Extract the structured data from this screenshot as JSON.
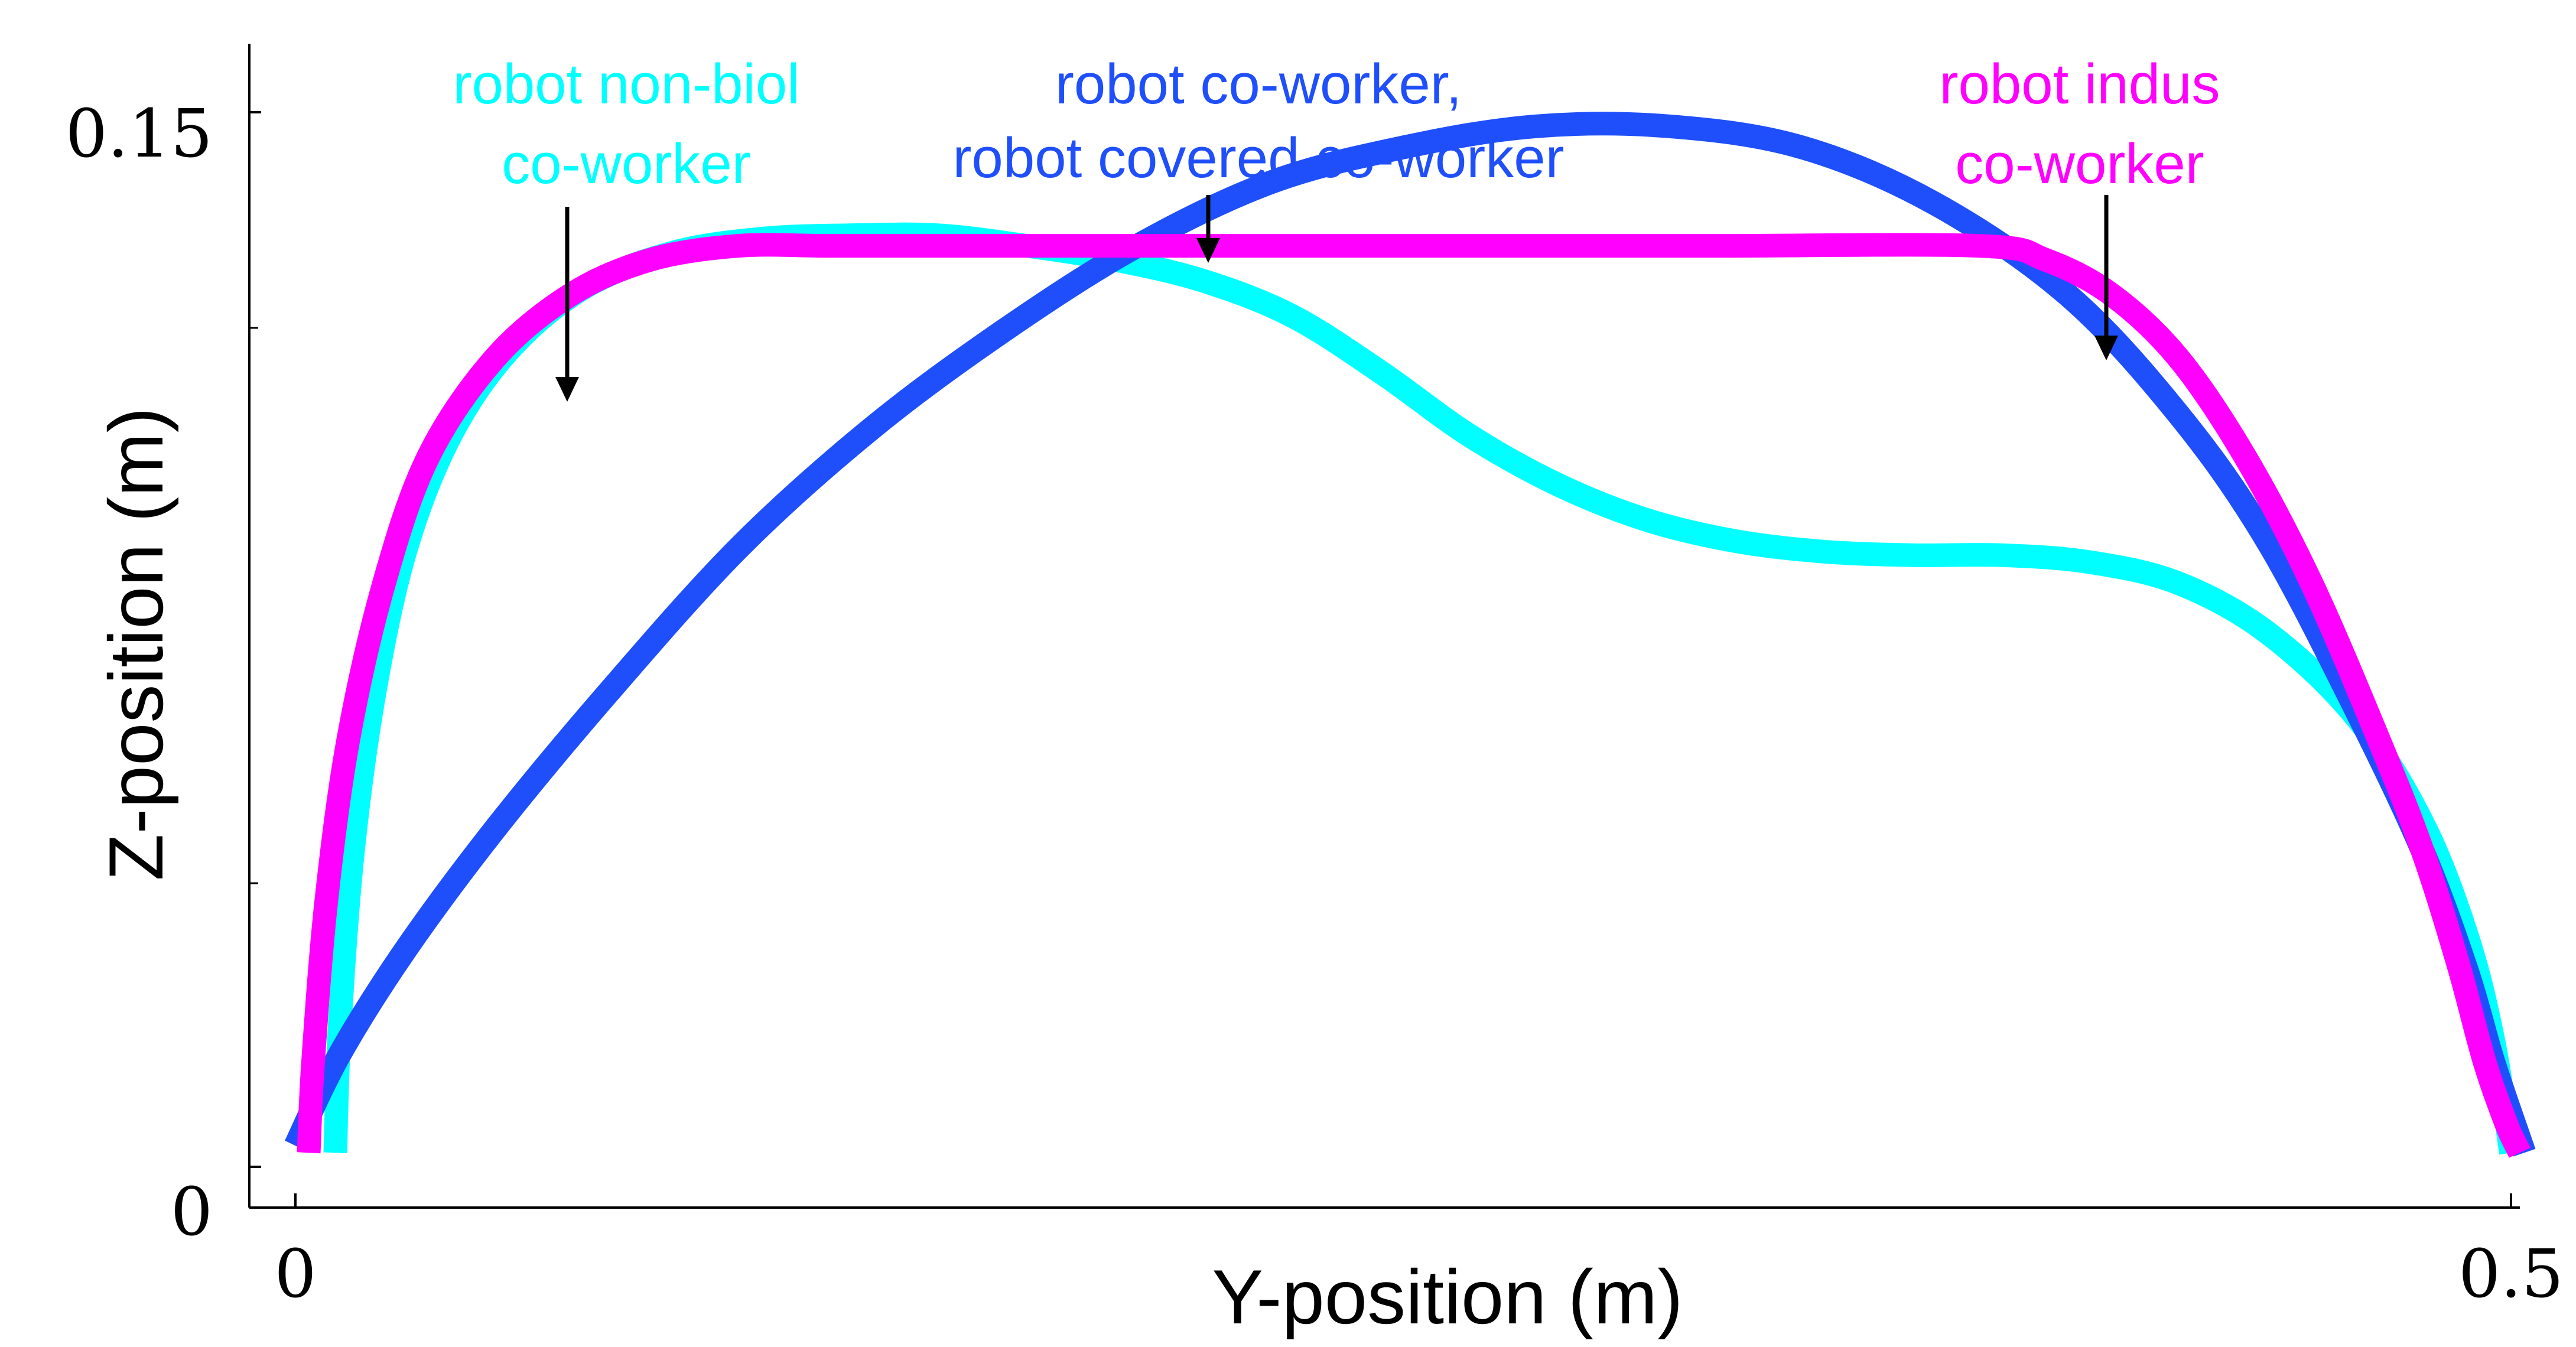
{
  "chart_data": {
    "type": "line",
    "xlabel": "Y-position (m)",
    "ylabel": "Z-position (m)",
    "xlim": [
      0,
      0.5
    ],
    "ylim": [
      0,
      0.155
    ],
    "x_tick_labels": [
      "0",
      "0.5"
    ],
    "y_tick_labels": [
      "0",
      "0.15"
    ],
    "y_ticks": [
      0,
      0.15
    ],
    "grid": false,
    "series": [
      {
        "name": "robot non-biol co-worker",
        "color": "#00FFFF",
        "x": [
          0.009,
          0.01,
          0.013,
          0.018,
          0.025,
          0.035,
          0.048,
          0.065,
          0.085,
          0.105,
          0.125,
          0.145,
          0.165,
          0.185,
          0.205,
          0.225,
          0.245,
          0.265,
          0.285,
          0.305,
          0.325,
          0.345,
          0.365,
          0.385,
          0.405,
          0.425,
          0.445,
          0.465,
          0.48,
          0.49,
          0.496,
          0.5
        ],
        "y": [
          0.002,
          0.02,
          0.045,
          0.068,
          0.088,
          0.104,
          0.116,
          0.125,
          0.13,
          0.132,
          0.1325,
          0.1325,
          0.131,
          0.129,
          0.126,
          0.121,
          0.113,
          0.104,
          0.097,
          0.092,
          0.089,
          0.0875,
          0.087,
          0.087,
          0.086,
          0.083,
          0.076,
          0.064,
          0.049,
          0.033,
          0.018,
          0.002
        ]
      },
      {
        "name": "robot co-worker, robot covered co-worker",
        "color": "#1F4FFA",
        "x": [
          0.0,
          0.01,
          0.025,
          0.045,
          0.07,
          0.1,
          0.13,
          0.16,
          0.19,
          0.22,
          0.25,
          0.28,
          0.31,
          0.34,
          0.37,
          0.4,
          0.425,
          0.445,
          0.465,
          0.48,
          0.49,
          0.496,
          0.503
        ],
        "y": [
          0.003,
          0.016,
          0.031,
          0.048,
          0.067,
          0.088,
          0.105,
          0.119,
          0.131,
          0.14,
          0.145,
          0.148,
          0.148,
          0.145,
          0.137,
          0.124,
          0.107,
          0.089,
          0.065,
          0.045,
          0.028,
          0.015,
          0.002
        ]
      },
      {
        "name": "robot indus co-worker",
        "color": "#FF00FF",
        "x": [
          0.003,
          0.004,
          0.007,
          0.012,
          0.02,
          0.03,
          0.045,
          0.062,
          0.08,
          0.1,
          0.12,
          0.14,
          0.2,
          0.26,
          0.32,
          0.38,
          0.395,
          0.41,
          0.425,
          0.44,
          0.455,
          0.47,
          0.48,
          0.488,
          0.494,
          0.499,
          0.502
        ],
        "y": [
          0.002,
          0.015,
          0.038,
          0.061,
          0.083,
          0.101,
          0.115,
          0.124,
          0.129,
          0.131,
          0.131,
          0.131,
          0.131,
          0.131,
          0.131,
          0.131,
          0.129,
          0.124,
          0.115,
          0.101,
          0.083,
          0.061,
          0.045,
          0.029,
          0.015,
          0.006,
          0.002
        ]
      }
    ],
    "annotations": [
      {
        "lines": [
          "robot non-biol",
          "co-worker"
        ],
        "color": "#00FFFF",
        "series_index": 0
      },
      {
        "lines": [
          "robot co-worker,",
          "robot covered co-worker"
        ],
        "color": "#1F4FFA",
        "series_index": 1
      },
      {
        "lines": [
          "robot indus",
          "co-worker"
        ],
        "color": "#FF00FF",
        "series_index": 2
      }
    ]
  }
}
